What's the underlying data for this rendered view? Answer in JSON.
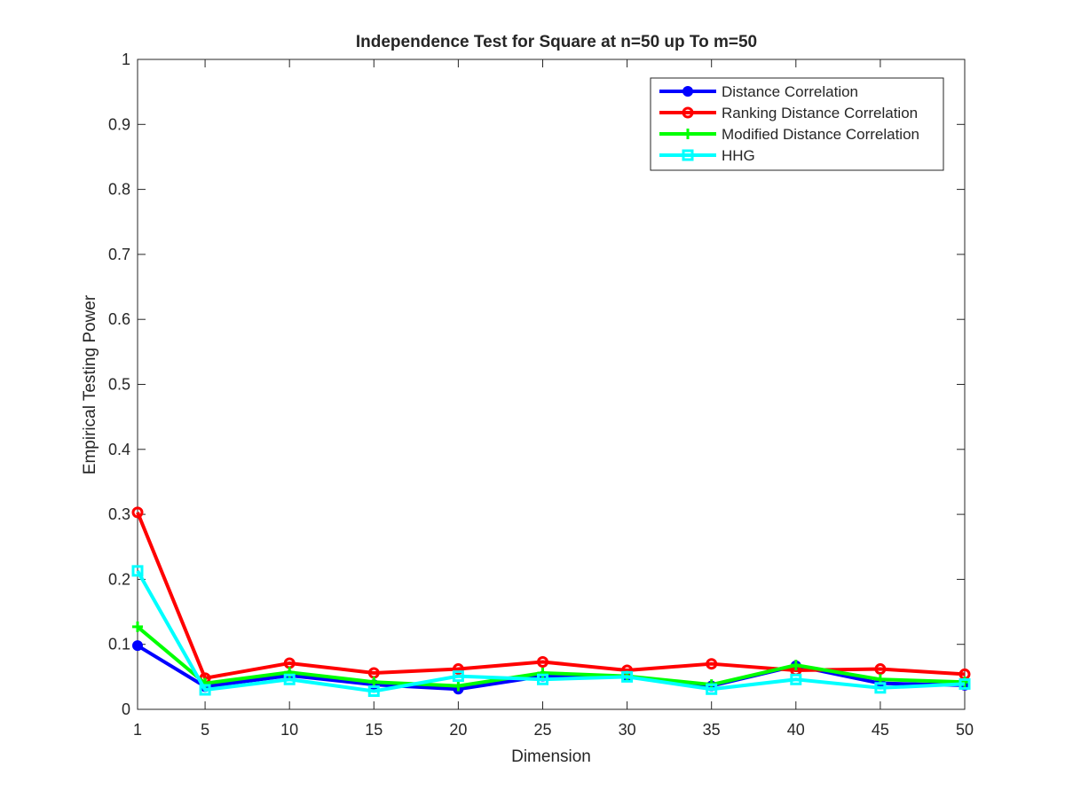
{
  "chart_data": {
    "type": "line",
    "title": "Independence Test for Square at n=50 up To m=50",
    "xlabel": "Dimension",
    "ylabel": "Empirical Testing Power",
    "x": [
      1,
      5,
      10,
      15,
      20,
      25,
      30,
      35,
      40,
      45,
      50
    ],
    "xlim": [
      1,
      50
    ],
    "ylim": [
      0,
      1
    ],
    "xticks": [
      "1",
      "5",
      "10",
      "15",
      "20",
      "25",
      "30",
      "35",
      "40",
      "45",
      "50"
    ],
    "yticks": [
      "0",
      "0.1",
      "0.2",
      "0.3",
      "0.4",
      "0.5",
      "0.6",
      "0.7",
      "0.8",
      "0.9",
      "1"
    ],
    "legend_position": "top-right",
    "grid": false,
    "series": [
      {
        "name": "Distance Correlation",
        "color": "#0000ff",
        "marker": "dot",
        "values": [
          0.098,
          0.035,
          0.052,
          0.038,
          0.031,
          0.051,
          0.05,
          0.036,
          0.067,
          0.04,
          0.037
        ]
      },
      {
        "name": "Ranking Distance Correlation",
        "color": "#ff0000",
        "marker": "ring",
        "values": [
          0.303,
          0.048,
          0.071,
          0.056,
          0.062,
          0.073,
          0.06,
          0.07,
          0.06,
          0.062,
          0.054
        ]
      },
      {
        "name": "Modified Distance Correlation",
        "color": "#00ff00",
        "marker": "plus",
        "values": [
          0.127,
          0.04,
          0.057,
          0.042,
          0.036,
          0.056,
          0.051,
          0.038,
          0.068,
          0.046,
          0.042
        ]
      },
      {
        "name": "HHG",
        "color": "#00ffff",
        "marker": "square",
        "values": [
          0.213,
          0.03,
          0.046,
          0.028,
          0.051,
          0.046,
          0.05,
          0.031,
          0.046,
          0.033,
          0.039
        ]
      }
    ]
  }
}
